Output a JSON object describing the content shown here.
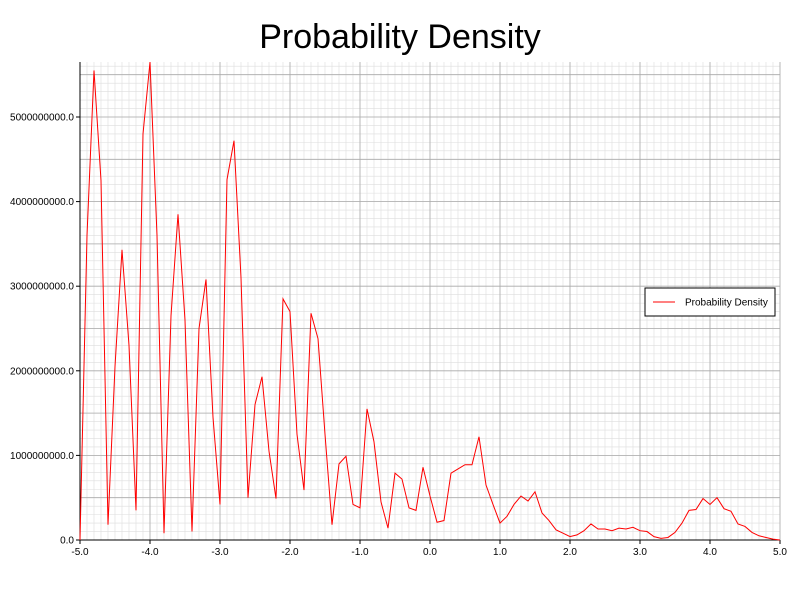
{
  "chart_data": {
    "type": "line",
    "title": "Probability Density",
    "xlabel": "",
    "ylabel": "",
    "xlim": [
      -5.0,
      5.0
    ],
    "ylim": [
      0,
      5650000000
    ],
    "x_ticks": [
      -5.0,
      -4.0,
      -3.0,
      -2.0,
      -1.0,
      0.0,
      1.0,
      2.0,
      3.0,
      4.0,
      5.0
    ],
    "x_tick_labels": [
      "-5.0",
      "-4.0",
      "-3.0",
      "-2.0",
      "-1.0",
      "0.0",
      "1.0",
      "2.0",
      "3.0",
      "4.0",
      "5.0"
    ],
    "y_ticks": [
      0,
      1000000000,
      2000000000,
      3000000000,
      4000000000,
      5000000000
    ],
    "y_tick_labels": [
      "0.0",
      "1000000000.0",
      "2000000000.0",
      "3000000000.0",
      "4000000000.0",
      "5000000000.0"
    ],
    "grid": true,
    "legend": {
      "position": "right",
      "entries": [
        "Probability Density"
      ]
    },
    "colors": {
      "series": "#ff0000",
      "major_grid": "#aaaaaa",
      "minor_grid": "#dddddd",
      "axis": "#000000"
    },
    "series": [
      {
        "name": "Probability Density",
        "x": [
          -5.0,
          -4.9,
          -4.8,
          -4.7,
          -4.6,
          -4.5,
          -4.4,
          -4.3,
          -4.2,
          -4.1,
          -4.0,
          -3.9,
          -3.8,
          -3.7,
          -3.6,
          -3.5,
          -3.4,
          -3.3,
          -3.2,
          -3.1,
          -3.0,
          -2.9,
          -2.8,
          -2.7,
          -2.6,
          -2.5,
          -2.4,
          -2.3,
          -2.2,
          -2.1,
          -2.0,
          -1.9,
          -1.8,
          -1.7,
          -1.6,
          -1.5,
          -1.4,
          -1.3,
          -1.2,
          -1.1,
          -1.0,
          -0.9,
          -0.8,
          -0.7,
          -0.6,
          -0.5,
          -0.4,
          -0.3,
          -0.2,
          -0.1,
          0.0,
          0.1,
          0.2,
          0.3,
          0.4,
          0.5,
          0.6,
          0.7,
          0.8,
          0.9,
          1.0,
          1.1,
          1.2,
          1.3,
          1.4,
          1.5,
          1.6,
          1.7,
          1.8,
          1.9,
          2.0,
          2.1,
          2.2,
          2.3,
          2.4,
          2.5,
          2.6,
          2.7,
          2.8,
          2.9,
          3.0,
          3.1,
          3.2,
          3.3,
          3.4,
          3.5,
          3.6,
          3.7,
          3.8,
          3.9,
          4.0,
          4.1,
          4.2,
          4.3,
          4.4,
          4.5,
          4.6,
          4.7,
          4.8,
          4.9,
          5.0
        ],
        "y": [
          0,
          3600000000,
          5550000000,
          4250000000,
          180000000,
          2050000000,
          3430000000,
          2300000000,
          350000000,
          4800000000,
          5650000000,
          3600000000,
          80000000,
          2650000000,
          3850000000,
          2600000000,
          100000000,
          2500000000,
          3080000000,
          1450000000,
          420000000,
          4260000000,
          4720000000,
          3100000000,
          500000000,
          1600000000,
          1930000000,
          1050000000,
          490000000,
          2850000000,
          2700000000,
          1250000000,
          590000000,
          2680000000,
          2380000000,
          1250000000,
          180000000,
          900000000,
          990000000,
          420000000,
          380000000,
          1550000000,
          1160000000,
          450000000,
          140000000,
          790000000,
          720000000,
          380000000,
          350000000,
          860000000,
          520000000,
          210000000,
          230000000,
          790000000,
          840000000,
          890000000,
          890000000,
          1220000000,
          650000000,
          420000000,
          200000000,
          280000000,
          420000000,
          520000000,
          460000000,
          570000000,
          320000000,
          230000000,
          120000000,
          80000000,
          40000000,
          60000000,
          110000000,
          190000000,
          130000000,
          130000000,
          110000000,
          140000000,
          130000000,
          150000000,
          110000000,
          100000000,
          40000000,
          20000000,
          30000000,
          90000000,
          200000000,
          350000000,
          360000000,
          490000000,
          420000000,
          500000000,
          370000000,
          340000000,
          190000000,
          160000000,
          90000000,
          50000000,
          30000000,
          10000000,
          0
        ]
      }
    ]
  }
}
